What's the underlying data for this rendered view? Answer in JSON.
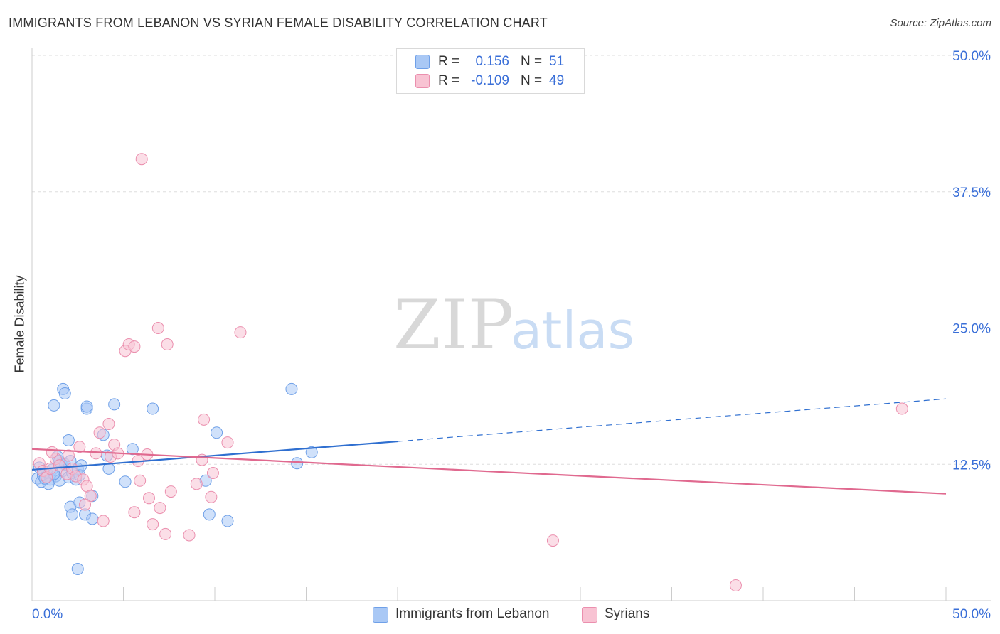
{
  "title": "IMMIGRANTS FROM LEBANON VS SYRIAN FEMALE DISABILITY CORRELATION CHART",
  "source": "Source: ZipAtlas.com",
  "watermark": {
    "zip": "ZIP",
    "atlas": "atlas"
  },
  "legend": {
    "rows": [
      {
        "r_label": "R =",
        "r_value": "0.156",
        "n_label": "N =",
        "n_value": "51",
        "color": "#a9c8f5",
        "border": "#6fa0e8"
      },
      {
        "r_label": "R =",
        "r_value": "-0.109",
        "n_label": "N =",
        "n_value": "49",
        "color": "#f8c3d3",
        "border": "#eb8fae"
      }
    ]
  },
  "bottom_legend": {
    "items": [
      {
        "label": "Immigrants from Lebanon",
        "color": "#a9c8f5",
        "border": "#6fa0e8"
      },
      {
        "label": "Syrians",
        "color": "#f8c3d3",
        "border": "#eb8fae"
      }
    ]
  },
  "chart_data": {
    "type": "scatter",
    "title": "IMMIGRANTS FROM LEBANON VS SYRIAN FEMALE DISABILITY CORRELATION CHART",
    "xlabel": "",
    "ylabel": "Female Disability",
    "xlim": [
      0,
      50
    ],
    "ylim": [
      0,
      50
    ],
    "x_tick_labels": [
      "0.0%",
      "50.0%"
    ],
    "y_tick_labels": [
      "12.5%",
      "25.0%",
      "37.5%",
      "50.0%"
    ],
    "y_ticks": [
      12.5,
      25.0,
      37.5,
      50.0
    ],
    "grid": true,
    "series": [
      {
        "name": "Immigrants from Lebanon",
        "color": "#6fa0e8",
        "fill": "#a9c8f5",
        "trend_color": "#2f6fd0",
        "trend": {
          "x0": 0,
          "y0": 12.0,
          "x1": 20,
          "y1": 14.6,
          "extend_to_x": 50,
          "extend_y": 18.5
        },
        "points": [
          [
            0.3,
            11.2
          ],
          [
            0.5,
            10.9
          ],
          [
            0.6,
            11.5
          ],
          [
            0.8,
            11.8
          ],
          [
            1.0,
            11.1
          ],
          [
            1.1,
            12.0
          ],
          [
            1.3,
            11.4
          ],
          [
            1.5,
            11.0
          ],
          [
            1.6,
            12.6
          ],
          [
            1.7,
            11.9
          ],
          [
            0.4,
            12.2
          ],
          [
            0.9,
            10.7
          ],
          [
            1.2,
            11.6
          ],
          [
            1.4,
            13.2
          ],
          [
            1.8,
            12.5
          ],
          [
            2.0,
            11.3
          ],
          [
            2.1,
            12.8
          ],
          [
            2.2,
            11.7
          ],
          [
            2.4,
            11.1
          ],
          [
            2.5,
            12.1
          ],
          [
            2.6,
            11.5
          ],
          [
            2.7,
            12.4
          ],
          [
            2.0,
            14.7
          ],
          [
            1.2,
            17.9
          ],
          [
            1.7,
            19.4
          ],
          [
            1.8,
            19.0
          ],
          [
            3.0,
            17.6
          ],
          [
            3.0,
            17.8
          ],
          [
            4.5,
            18.0
          ],
          [
            3.9,
            15.2
          ],
          [
            2.1,
            8.6
          ],
          [
            2.2,
            7.9
          ],
          [
            2.9,
            7.9
          ],
          [
            2.6,
            9.0
          ],
          [
            3.3,
            9.6
          ],
          [
            3.3,
            7.5
          ],
          [
            4.1,
            13.3
          ],
          [
            4.2,
            12.1
          ],
          [
            5.1,
            10.9
          ],
          [
            5.5,
            13.9
          ],
          [
            6.6,
            17.6
          ],
          [
            10.1,
            15.4
          ],
          [
            9.5,
            11.0
          ],
          [
            9.7,
            7.9
          ],
          [
            10.7,
            7.3
          ],
          [
            14.2,
            19.4
          ],
          [
            14.5,
            12.6
          ],
          [
            15.3,
            13.6
          ],
          [
            2.5,
            2.9
          ],
          [
            1.5,
            12.8
          ],
          [
            0.7,
            11.2
          ]
        ]
      },
      {
        "name": "Syrians",
        "color": "#eb8fae",
        "fill": "#f8c3d3",
        "trend_color": "#e0698f",
        "trend": {
          "x0": 0,
          "y0": 13.9,
          "x1": 50,
          "y1": 9.8
        },
        "points": [
          [
            0.4,
            12.6
          ],
          [
            0.6,
            11.9
          ],
          [
            0.8,
            11.3
          ],
          [
            1.0,
            12.1
          ],
          [
            1.3,
            13.0
          ],
          [
            1.5,
            12.4
          ],
          [
            1.9,
            11.6
          ],
          [
            2.0,
            13.3
          ],
          [
            2.2,
            12.1
          ],
          [
            2.4,
            11.4
          ],
          [
            2.6,
            14.1
          ],
          [
            2.8,
            11.1
          ],
          [
            3.0,
            10.5
          ],
          [
            3.2,
            9.6
          ],
          [
            2.9,
            8.8
          ],
          [
            3.5,
            13.5
          ],
          [
            3.7,
            15.4
          ],
          [
            3.9,
            7.3
          ],
          [
            4.2,
            16.2
          ],
          [
            4.3,
            13.2
          ],
          [
            4.5,
            14.3
          ],
          [
            4.7,
            13.5
          ],
          [
            5.1,
            22.9
          ],
          [
            5.3,
            23.5
          ],
          [
            5.6,
            23.3
          ],
          [
            5.9,
            11.0
          ],
          [
            5.8,
            12.8
          ],
          [
            6.3,
            13.4
          ],
          [
            5.6,
            8.1
          ],
          [
            6.4,
            9.4
          ],
          [
            6.6,
            7.0
          ],
          [
            7.0,
            8.5
          ],
          [
            7.3,
            6.1
          ],
          [
            7.6,
            10.0
          ],
          [
            8.6,
            6.0
          ],
          [
            9.0,
            10.7
          ],
          [
            9.3,
            12.9
          ],
          [
            9.4,
            16.6
          ],
          [
            9.8,
            9.5
          ],
          [
            9.9,
            11.7
          ],
          [
            10.7,
            14.5
          ],
          [
            11.4,
            24.6
          ],
          [
            6.9,
            25.0
          ],
          [
            7.4,
            23.5
          ],
          [
            6.0,
            40.5
          ],
          [
            28.5,
            5.5
          ],
          [
            38.5,
            1.4
          ],
          [
            47.6,
            17.6
          ],
          [
            1.1,
            13.6
          ]
        ]
      }
    ]
  }
}
